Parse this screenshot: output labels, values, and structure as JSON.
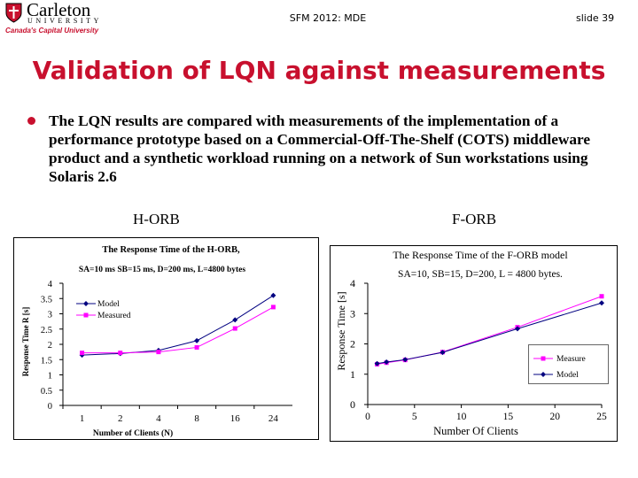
{
  "header": {
    "logo_name": "Carleton",
    "logo_university": "UNIVERSITY",
    "logo_tagline": "Canada's Capital University",
    "course": "SFM 2012: MDE",
    "slide_number": "slide 39"
  },
  "slide": {
    "title": "Validation of LQN against measurements",
    "bullet_text": "The LQN results are compared with measurements of the implementation of a performance prototype based on a Commercial-Off-The-Shelf (COTS) middleware product and a synthetic workload running on a network of Sun workstations using Solaris 2.6",
    "label_left": "H-ORB",
    "label_right": "F-ORB"
  },
  "colors": {
    "accent": "#c8102e",
    "model": "#000080",
    "measured": "#ff00ff"
  },
  "chart_data": [
    {
      "type": "line",
      "title": "The Response Time of the H-ORB,",
      "subtitle": "SA=10 ms SB=15 ms, D=200 ms, L=4800 bytes",
      "xlabel": "Number of Clients (N)",
      "ylabel": "Response Time R [s]",
      "categories": [
        "1",
        "2",
        "4",
        "8",
        "16",
        "24"
      ],
      "ylim": [
        0,
        4
      ],
      "yticks": [
        "0",
        "0.5",
        "1",
        "1.5",
        "2",
        "2.5",
        "3",
        "3.5",
        "4"
      ],
      "legend_position": "top-left",
      "series": [
        {
          "name": "Model",
          "marker": "diamond",
          "values": [
            1.65,
            1.7,
            1.8,
            2.12,
            2.8,
            3.6
          ]
        },
        {
          "name": "Measured",
          "marker": "square",
          "values": [
            1.72,
            1.72,
            1.75,
            1.9,
            2.52,
            3.22
          ]
        }
      ]
    },
    {
      "type": "line",
      "title": "The Response Time of the F-ORB model",
      "subtitle": "SA=10, SB=15, D=200, L = 4800 bytes.",
      "xlabel": "Number Of Clients",
      "ylabel": "Response Time [s]",
      "xlim": [
        0,
        25
      ],
      "xticks": [
        "0",
        "5",
        "10",
        "15",
        "20",
        "25"
      ],
      "ylim": [
        0,
        4
      ],
      "yticks": [
        "0",
        "1",
        "2",
        "3",
        "4"
      ],
      "legend_position": "bottom-right",
      "series": [
        {
          "name": "Measure",
          "marker": "square",
          "x": [
            1,
            2,
            4,
            8,
            16,
            25
          ],
          "y": [
            1.33,
            1.38,
            1.47,
            1.73,
            2.55,
            3.57
          ]
        },
        {
          "name": "Model",
          "marker": "diamond",
          "x": [
            1,
            2,
            4,
            8,
            16,
            25
          ],
          "y": [
            1.35,
            1.4,
            1.48,
            1.72,
            2.5,
            3.35
          ]
        }
      ]
    }
  ]
}
